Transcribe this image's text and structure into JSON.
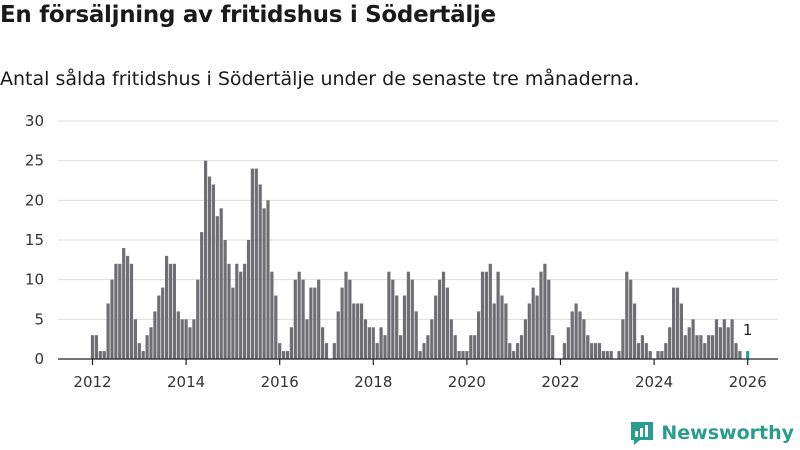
{
  "header": {
    "title": "En försäljning av fritidshus i Södertälje",
    "subtitle": "Antal sålda fritidshus i Södertälje under de senaste tre månaderna."
  },
  "brand": {
    "name": "Newsworthy",
    "icon": "newsworthy-logo-icon",
    "color": "#2a9d8f"
  },
  "chart_data": {
    "type": "bar",
    "title": "En försäljning av fritidshus i Södertälje",
    "subtitle": "Antal sålda fritidshus i Södertälje under de senaste tre månaderna.",
    "xlabel": "",
    "ylabel": "",
    "ylim": [
      0,
      30
    ],
    "yticks": [
      0,
      5,
      10,
      15,
      20,
      25,
      30
    ],
    "xticks": [
      "2012",
      "2014",
      "2016",
      "2018",
      "2020",
      "2022",
      "2024",
      "2026"
    ],
    "grid": true,
    "start_month": "2012-01",
    "bar_color": "#6f6e72",
    "highlight_color": "#27a096",
    "highlight_last": true,
    "annotation": "1",
    "values": [
      3,
      3,
      1,
      1,
      7,
      10,
      12,
      12,
      14,
      13,
      12,
      5,
      2,
      1,
      3,
      4,
      6,
      8,
      9,
      13,
      12,
      12,
      6,
      5,
      5,
      4,
      5,
      10,
      16,
      25,
      23,
      22,
      18,
      19,
      15,
      12,
      9,
      12,
      11,
      12,
      15,
      24,
      24,
      22,
      19,
      20,
      11,
      8,
      2,
      1,
      1,
      4,
      10,
      11,
      10,
      5,
      9,
      9,
      10,
      4,
      2,
      0,
      2,
      6,
      9,
      11,
      10,
      7,
      7,
      7,
      5,
      4,
      4,
      2,
      4,
      3,
      11,
      10,
      8,
      3,
      8,
      11,
      10,
      6,
      1,
      2,
      3,
      5,
      8,
      10,
      11,
      9,
      5,
      3,
      1,
      1,
      1,
      3,
      3,
      6,
      11,
      11,
      12,
      7,
      11,
      8,
      7,
      2,
      1,
      2,
      3,
      5,
      7,
      9,
      8,
      11,
      12,
      10,
      3,
      0,
      0,
      2,
      4,
      6,
      7,
      6,
      5,
      3,
      2,
      2,
      2,
      1,
      1,
      1,
      0,
      1,
      5,
      11,
      10,
      7,
      2,
      3,
      2,
      1,
      0,
      1,
      1,
      2,
      4,
      9,
      9,
      7,
      3,
      4,
      5,
      3,
      3,
      2,
      3,
      3,
      5,
      4,
      5,
      4,
      5,
      2,
      1,
      0,
      1
    ]
  }
}
